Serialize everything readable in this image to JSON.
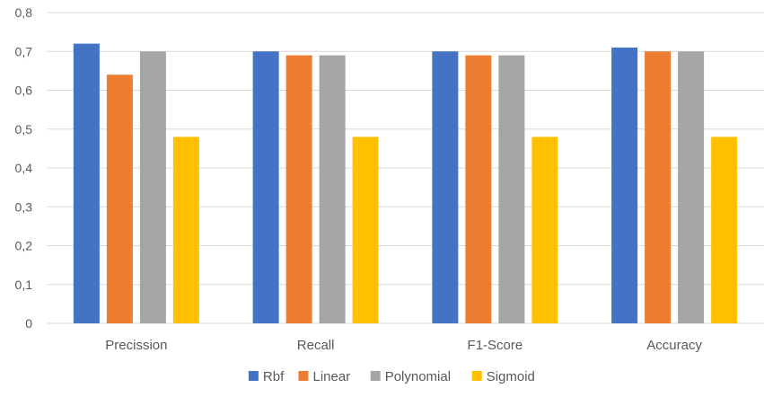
{
  "chart_data": {
    "type": "bar",
    "categories": [
      "Precission",
      "Recall",
      "F1-Score",
      "Accuracy"
    ],
    "series": [
      {
        "name": "Rbf",
        "values": [
          0.72,
          0.7,
          0.7,
          0.71
        ],
        "color": "#4472c4"
      },
      {
        "name": "Linear",
        "values": [
          0.64,
          0.69,
          0.69,
          0.7
        ],
        "color": "#ed7d31"
      },
      {
        "name": "Polynomial",
        "values": [
          0.7,
          0.69,
          0.69,
          0.7
        ],
        "color": "#a5a5a5"
      },
      {
        "name": "Sigmoid",
        "values": [
          0.48,
          0.48,
          0.48,
          0.48
        ],
        "color": "#ffc000"
      }
    ],
    "yticks": [
      "0",
      "0,1",
      "0,2",
      "0,3",
      "0,4",
      "0,5",
      "0,6",
      "0,7",
      "0,8"
    ],
    "ylim": [
      0,
      0.8
    ],
    "title": "",
    "xlabel": "",
    "ylabel": "",
    "grid": true,
    "legend_position": "bottom"
  }
}
